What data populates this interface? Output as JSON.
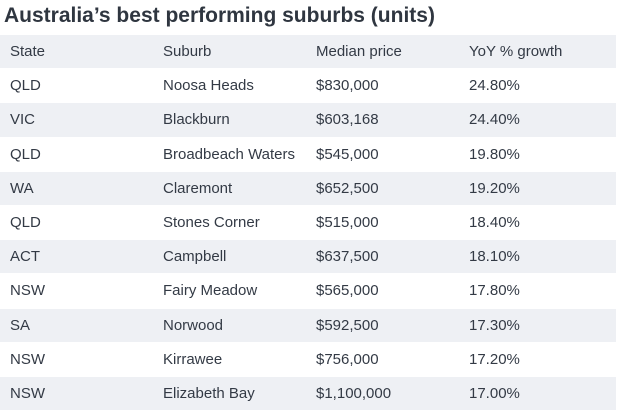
{
  "title": "Australia’s best performing suburbs (units)",
  "table": {
    "headers": [
      "State",
      "Suburb",
      "Median price",
      "YoY % growth"
    ],
    "rows": [
      {
        "state": "QLD",
        "suburb": "Noosa Heads",
        "price": "$830,000",
        "growth": "24.80%"
      },
      {
        "state": "VIC",
        "suburb": "Blackburn",
        "price": "$603,168",
        "growth": "24.40%"
      },
      {
        "state": "QLD",
        "suburb": "Broadbeach Waters",
        "price": "$545,000",
        "growth": "19.80%"
      },
      {
        "state": "WA",
        "suburb": "Claremont",
        "price": "$652,500",
        "growth": "19.20%"
      },
      {
        "state": "QLD",
        "suburb": "Stones Corner",
        "price": "$515,000",
        "growth": "18.40%"
      },
      {
        "state": "ACT",
        "suburb": "Campbell",
        "price": "$637,500",
        "growth": "18.10%"
      },
      {
        "state": "NSW",
        "suburb": "Fairy Meadow",
        "price": "$565,000",
        "growth": "17.80%"
      },
      {
        "state": "SA",
        "suburb": "Norwood",
        "price": "$592,500",
        "growth": "17.30%"
      },
      {
        "state": "NSW",
        "suburb": "Kirrawee",
        "price": "$756,000",
        "growth": "17.20%"
      },
      {
        "state": "NSW",
        "suburb": "Elizabeth Bay",
        "price": "$1,100,000",
        "growth": "17.00%"
      }
    ]
  }
}
